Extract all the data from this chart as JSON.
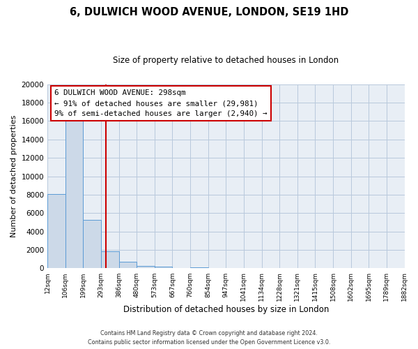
{
  "title": "6, DULWICH WOOD AVENUE, LONDON, SE19 1HD",
  "subtitle": "Size of property relative to detached houses in London",
  "xlabel": "Distribution of detached houses by size in London",
  "ylabel": "Number of detached properties",
  "bar_color": "#ccd9e8",
  "bar_edge_color": "#5b9bd5",
  "background_color": "#ffffff",
  "plot_bg_color": "#e8eef5",
  "grid_color": "#b8c8dc",
  "vline_color": "#cc0000",
  "bins": [
    "12sqm",
    "106sqm",
    "199sqm",
    "293sqm",
    "386sqm",
    "480sqm",
    "573sqm",
    "667sqm",
    "760sqm",
    "854sqm",
    "947sqm",
    "1041sqm",
    "1134sqm",
    "1228sqm",
    "1321sqm",
    "1415sqm",
    "1508sqm",
    "1602sqm",
    "1695sqm",
    "1789sqm",
    "1882sqm"
  ],
  "values": [
    8100,
    16600,
    5300,
    1850,
    750,
    280,
    180,
    0,
    130,
    0,
    0,
    0,
    0,
    0,
    0,
    0,
    0,
    0,
    0,
    0
  ],
  "vline_x": 3.28,
  "annotation_text_line1": "6 DULWICH WOOD AVENUE: 298sqm",
  "annotation_text_line2": "← 91% of detached houses are smaller (29,981)",
  "annotation_text_line3": "9% of semi-detached houses are larger (2,940) →",
  "ylim": [
    0,
    20000
  ],
  "yticks": [
    0,
    2000,
    4000,
    6000,
    8000,
    10000,
    12000,
    14000,
    16000,
    18000,
    20000
  ],
  "footer1": "Contains HM Land Registry data © Crown copyright and database right 2024.",
  "footer2": "Contains public sector information licensed under the Open Government Licence v3.0."
}
